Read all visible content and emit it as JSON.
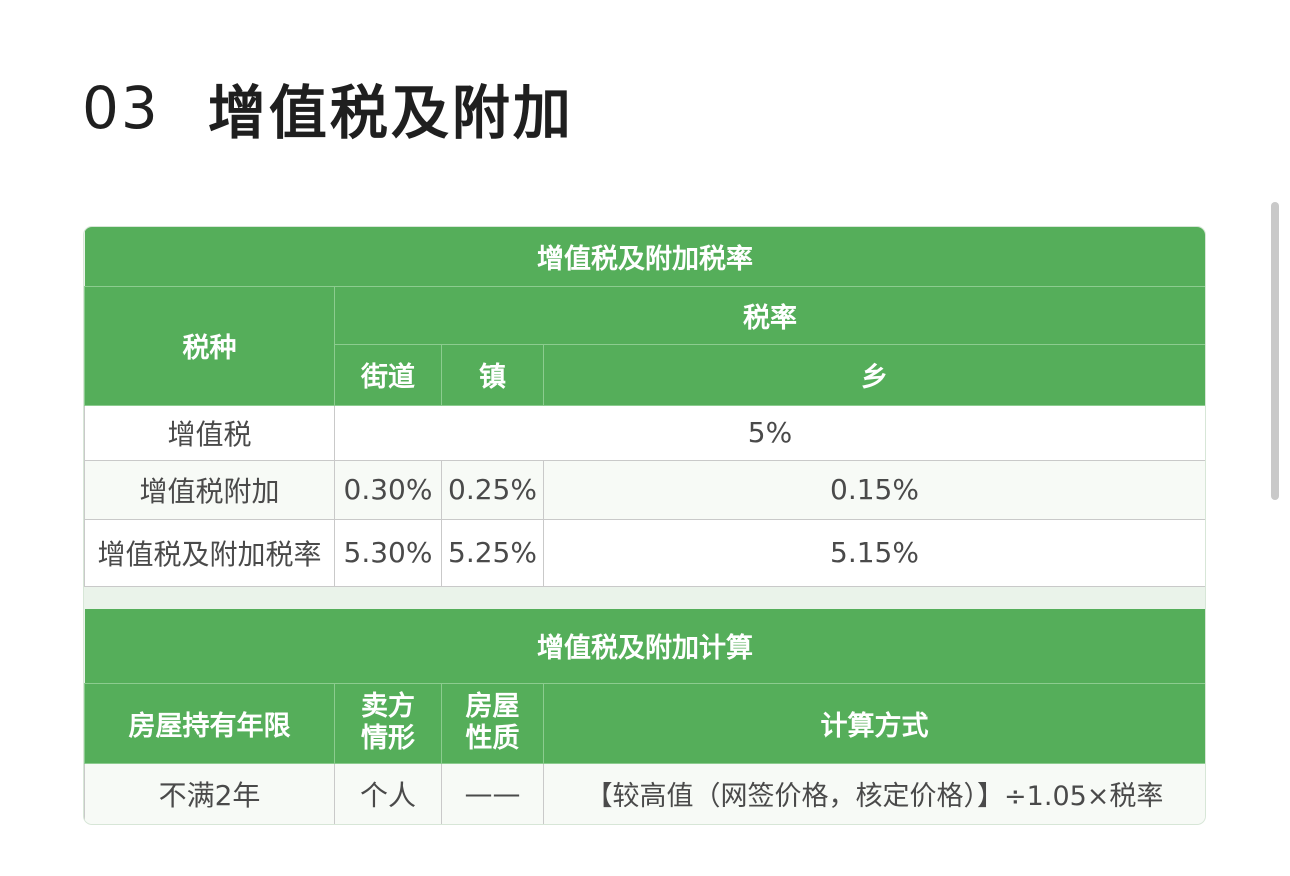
{
  "heading": {
    "number": "03",
    "title": "增值税及附加"
  },
  "rate_table": {
    "title": "增值税及附加税率",
    "col_tax_type": "税种",
    "col_rate": "税率",
    "sub_cols": [
      "街道",
      "镇",
      "乡"
    ],
    "rows": [
      {
        "label": "增值税",
        "merged": "5%"
      },
      {
        "label": "增值税附加",
        "street": "0.30%",
        "town": "0.25%",
        "village": "0.15%"
      },
      {
        "label": "增值税及附加税率",
        "street": "5.30%",
        "town": "5.25%",
        "village": "5.15%"
      }
    ]
  },
  "calc_table": {
    "title": "增值税及附加计算",
    "headers": [
      "房屋持有年限",
      "卖方情形",
      "房屋性质",
      "计算方式"
    ],
    "rows": [
      {
        "years": "不满2年",
        "seller": "个人",
        "nature": "——",
        "method": "【较高值（网签价格，核定价格）】÷1.05×税率"
      }
    ]
  }
}
